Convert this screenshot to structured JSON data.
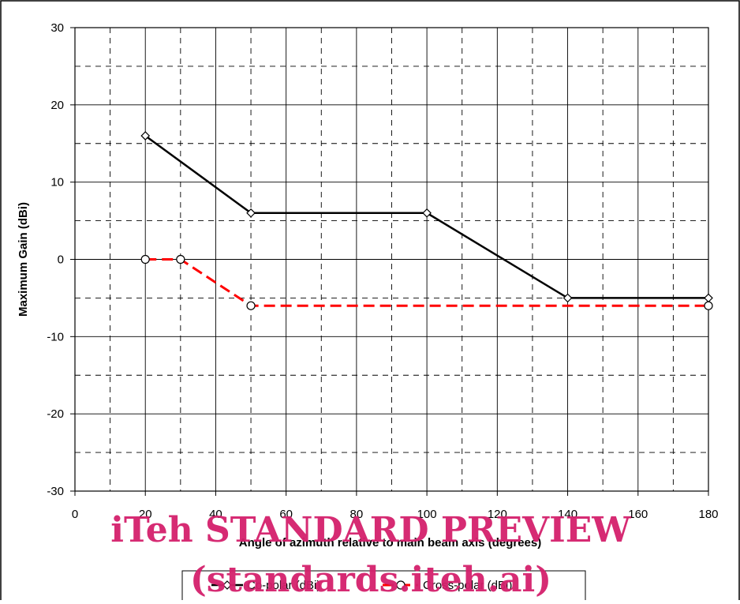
{
  "chart_data": {
    "type": "line",
    "title": "",
    "xlabel": "Angle of azimuth relative to main beam axis (degrees)",
    "ylabel": "Maximum Gain (dBi)",
    "xlim": [
      0,
      180
    ],
    "ylim": [
      -30,
      30
    ],
    "x_ticks": [
      0,
      20,
      40,
      60,
      80,
      100,
      120,
      140,
      160,
      180
    ],
    "y_ticks": [
      -30,
      -20,
      -10,
      0,
      10,
      20,
      30
    ],
    "grid": true,
    "legend_position": "bottom",
    "series": [
      {
        "name": "Co-polar (dBi)",
        "color": "#000000",
        "line_style": "solid",
        "marker": "diamond",
        "x": [
          20,
          50,
          100,
          140,
          180
        ],
        "y": [
          16,
          6,
          6,
          -5,
          -5
        ]
      },
      {
        "name": "Cross-polar (dBi)",
        "color": "#ff0000",
        "line_style": "dashed",
        "marker": "circle",
        "x": [
          20,
          30,
          50,
          180
        ],
        "y": [
          0,
          0,
          -6,
          -6
        ]
      }
    ]
  },
  "watermark": {
    "line1": "iTeh STANDARD PREVIEW",
    "line2": "(standards.iteh.ai)",
    "color": "#d4206c"
  }
}
